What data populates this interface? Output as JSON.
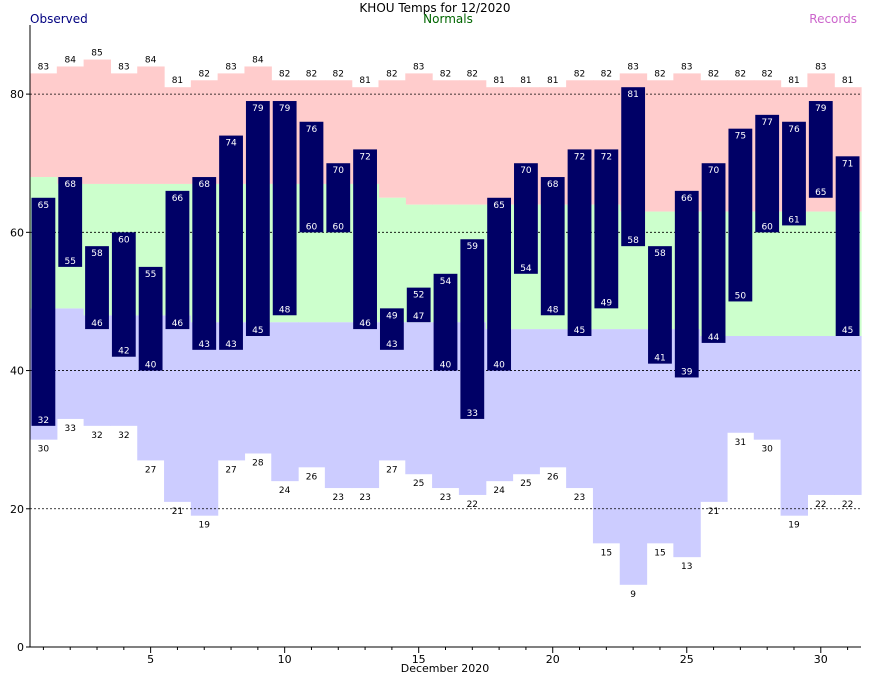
{
  "header": {
    "title": "KHOU Temps for 12/2020",
    "left_label": "Observed",
    "center_label": "Normals",
    "right_label": "Records"
  },
  "colors": {
    "observed": "#000066",
    "observed_text": "#000080",
    "normals_fill": "#ccffcc",
    "normals_text": "#006600",
    "record_high_fill": "#ffcccc",
    "record_low_fill": "#ccccff",
    "records_text": "#cc66cc"
  },
  "chart_data": {
    "type": "bar",
    "title": "KHOU Temps for 12/2020",
    "xlabel": "December 2020",
    "ylabel": "",
    "ylim": [
      0,
      90
    ],
    "xlim": [
      0.5,
      31.5
    ],
    "yticks": [
      0,
      20,
      40,
      60,
      80
    ],
    "xticks": [
      5,
      10,
      15,
      20,
      25,
      30
    ],
    "grid": true,
    "days": [
      1,
      2,
      3,
      4,
      5,
      6,
      7,
      8,
      9,
      10,
      11,
      12,
      13,
      14,
      15,
      16,
      17,
      18,
      19,
      20,
      21,
      22,
      23,
      24,
      25,
      26,
      27,
      28,
      29,
      30,
      31
    ],
    "series": [
      {
        "name": "Observed",
        "role": "observed_high",
        "values": [
          65,
          68,
          58,
          60,
          55,
          66,
          68,
          74,
          79,
          79,
          76,
          70,
          72,
          49,
          52,
          54,
          59,
          65,
          70,
          68,
          72,
          72,
          81,
          58,
          66,
          70,
          75,
          77,
          76,
          79,
          71
        ]
      },
      {
        "name": "Observed",
        "role": "observed_low",
        "values": [
          32,
          55,
          46,
          42,
          40,
          46,
          43,
          43,
          45,
          48,
          60,
          60,
          46,
          43,
          47,
          40,
          33,
          40,
          54,
          48,
          45,
          49,
          58,
          41,
          39,
          44,
          50,
          60,
          61,
          65,
          45
        ]
      },
      {
        "name": "Records",
        "role": "record_high",
        "values": [
          83,
          84,
          85,
          83,
          84,
          81,
          82,
          83,
          84,
          82,
          82,
          82,
          81,
          82,
          83,
          82,
          82,
          81,
          81,
          81,
          82,
          82,
          83,
          82,
          83,
          82,
          82,
          82,
          81,
          83,
          81
        ]
      },
      {
        "name": "Records",
        "role": "record_low",
        "values": [
          30,
          33,
          32,
          32,
          27,
          21,
          19,
          27,
          28,
          24,
          26,
          23,
          23,
          27,
          25,
          23,
          22,
          24,
          25,
          26,
          23,
          15,
          9,
          15,
          13,
          21,
          31,
          30,
          19,
          22,
          22
        ]
      },
      {
        "name": "Normals",
        "role": "normal_high",
        "values": [
          68,
          67,
          67,
          67,
          67,
          67,
          67,
          67,
          67,
          67,
          67,
          67,
          67,
          65,
          64,
          64,
          64,
          64,
          64,
          64,
          64,
          64,
          63,
          63,
          63,
          63,
          63,
          63,
          63,
          63,
          63
        ]
      },
      {
        "name": "Normals",
        "role": "normal_low",
        "values": [
          49,
          49,
          48,
          48,
          48,
          48,
          47,
          47,
          47,
          47,
          47,
          47,
          47,
          47,
          47,
          47,
          47,
          46,
          46,
          46,
          46,
          46,
          46,
          46,
          46,
          45,
          45,
          45,
          45,
          45,
          45
        ]
      }
    ],
    "labels": {
      "record_high": [
        "83",
        "84",
        "85",
        "83",
        "84",
        "81",
        "82",
        "83",
        "84",
        "82",
        "82",
        "82",
        "81",
        "82",
        "83",
        "82",
        "82",
        "81",
        "81",
        "81",
        "82",
        "82",
        "83",
        "82",
        "83",
        "82",
        "82",
        "82",
        "81",
        "83",
        "81"
      ],
      "record_low": [
        "30",
        "33",
        "32",
        "32",
        "27",
        "21",
        "19",
        "27",
        "28",
        "24",
        "26",
        "23",
        "23",
        "27",
        "25",
        "23",
        "22",
        "24",
        "25",
        "26",
        "23",
        "15",
        "9",
        "15",
        "13",
        "21",
        "31",
        "30",
        "19",
        "22",
        "22"
      ],
      "observed_high": [
        "65",
        "68",
        "58",
        "60",
        "55",
        "66",
        "68",
        "74",
        "79",
        "79",
        "76",
        "70",
        "72",
        "49",
        "52",
        "54",
        "59",
        "65",
        "70",
        "68",
        "72",
        "72",
        "81",
        "58",
        "66",
        "70",
        "75",
        "77",
        "76",
        "79",
        "71"
      ],
      "observed_low": [
        "32",
        "55",
        "46",
        "42",
        "40",
        "46",
        "43",
        "43",
        "45",
        "48",
        "60",
        "60",
        "46",
        "43",
        "47",
        "40",
        "33",
        "40",
        "54",
        "48",
        "45",
        "49",
        "58",
        "41",
        "39",
        "44",
        "50",
        "60",
        "61",
        "65",
        "45"
      ]
    }
  }
}
